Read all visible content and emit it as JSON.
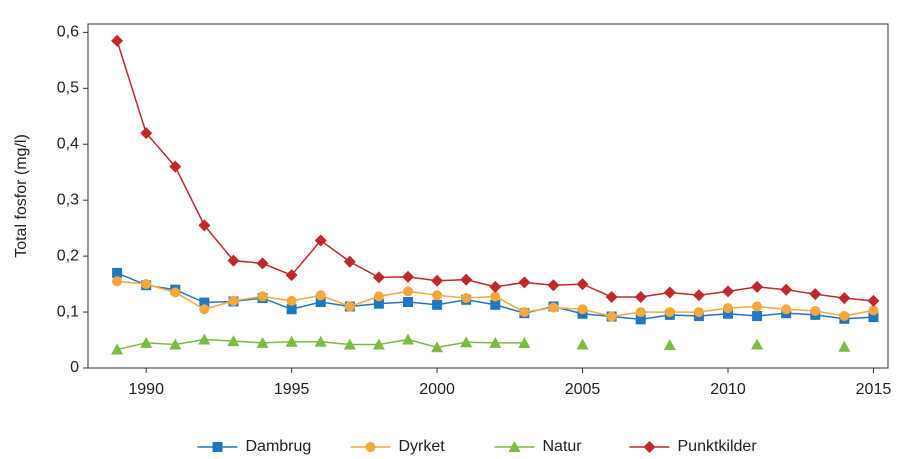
{
  "chart_data": {
    "type": "line",
    "y_label": "Total fosfor (mg/l)",
    "x": [
      1989,
      1990,
      1991,
      1992,
      1993,
      1994,
      1995,
      1996,
      1997,
      1998,
      1999,
      2000,
      2001,
      2002,
      2003,
      2004,
      2005,
      2006,
      2007,
      2008,
      2009,
      2010,
      2011,
      2012,
      2013,
      2014,
      2015
    ],
    "series": [
      {
        "name": "Dambrug",
        "color": "#1f78c1",
        "marker": "square",
        "values": [
          0.17,
          0.148,
          0.14,
          0.117,
          0.119,
          0.125,
          0.105,
          0.118,
          0.11,
          0.115,
          0.118,
          0.113,
          0.122,
          0.113,
          0.098,
          0.11,
          0.097,
          0.092,
          0.087,
          0.095,
          0.093,
          0.097,
          0.093,
          0.098,
          0.095,
          0.088,
          0.091
        ]
      },
      {
        "name": "Dyrket",
        "color": "#f7a83c",
        "marker": "circle",
        "values": [
          0.155,
          0.15,
          0.135,
          0.105,
          0.12,
          0.128,
          0.12,
          0.13,
          0.11,
          0.128,
          0.137,
          0.13,
          0.125,
          0.128,
          0.1,
          0.108,
          0.105,
          0.092,
          0.1,
          0.1,
          0.1,
          0.107,
          0.11,
          0.105,
          0.102,
          0.093,
          0.103
        ]
      },
      {
        "name": "Natur",
        "color": "#7dbb42",
        "marker": "triangle",
        "values": [
          0.033,
          0.045,
          0.042,
          0.051,
          0.048,
          0.045,
          0.047,
          0.047,
          0.042,
          0.042,
          0.051,
          0.037,
          0.046,
          0.045,
          0.045,
          null,
          0.042,
          null,
          null,
          0.041,
          null,
          null,
          0.042,
          null,
          null,
          0.038,
          null
        ]
      },
      {
        "name": "Punktkilder",
        "color": "#c0282d",
        "marker": "diamond",
        "values": [
          0.585,
          0.42,
          0.36,
          0.255,
          0.192,
          0.187,
          0.166,
          0.228,
          0.19,
          0.162,
          0.163,
          0.156,
          0.158,
          0.145,
          0.153,
          0.148,
          0.15,
          0.127,
          0.127,
          0.135,
          0.13,
          0.137,
          0.145,
          0.14,
          0.132,
          0.125,
          0.12
        ]
      }
    ],
    "xlim": [
      1988,
      2015.5
    ],
    "xticks": [
      1990,
      1995,
      2000,
      2005,
      2010,
      2015
    ],
    "ylim": [
      0,
      0.615
    ],
    "yticks": [
      0,
      {
        "value": 0.1,
        "label": "0,1"
      },
      {
        "value": 0.2,
        "label": "0,2"
      },
      {
        "value": 0.3,
        "label": "0,3"
      },
      {
        "value": 0.4,
        "label": "0,4"
      },
      {
        "value": 0.5,
        "label": "0,5"
      },
      {
        "value": 0.6,
        "label": "0,6"
      }
    ],
    "legend": "bottom"
  }
}
